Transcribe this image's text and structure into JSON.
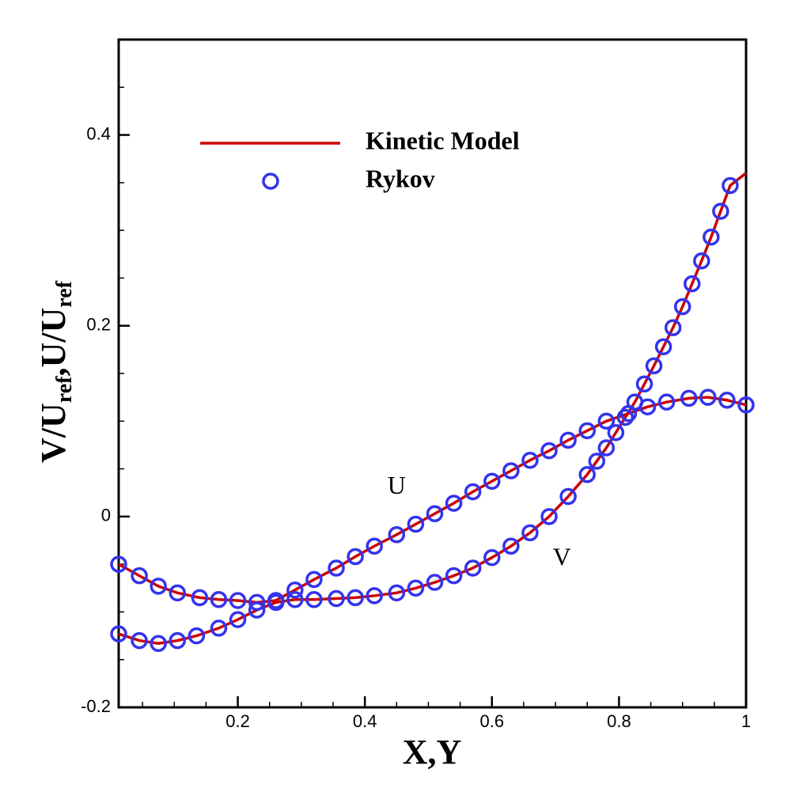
{
  "chart_data": {
    "type": "line",
    "xlabel": "X,Y",
    "ylabel_parts": [
      "V/U",
      "ref",
      ",U/U",
      "ref"
    ],
    "xlim": [
      0.0125,
      1
    ],
    "ylim": [
      -0.2,
      0.5
    ],
    "xticks": [
      0.2,
      0.4,
      0.6,
      0.8,
      1
    ],
    "yticks": [
      -0.2,
      0,
      0.2,
      0.4
    ],
    "xminor": [
      0.05,
      0.1,
      0.15,
      0.25,
      0.3,
      0.35,
      0.45,
      0.5,
      0.55,
      0.65,
      0.7,
      0.75,
      0.85,
      0.9,
      0.95
    ],
    "yminor": [
      -0.15,
      -0.1,
      -0.05,
      0.05,
      0.1,
      0.15,
      0.25,
      0.3,
      0.35,
      0.45,
      0.5
    ],
    "legend": [
      {
        "name": "Kinetic Model",
        "color": "#cc0000",
        "style": "line"
      },
      {
        "name": "Rykov",
        "color": "#3333ee",
        "style": "circle"
      }
    ],
    "series": [
      {
        "name": "U",
        "label_x": 0.45,
        "label_y": 0.03,
        "x": [
          0.0125,
          0.045,
          0.075,
          0.105,
          0.14,
          0.17,
          0.2,
          0.23,
          0.26,
          0.29,
          0.32,
          0.355,
          0.385,
          0.415,
          0.45,
          0.48,
          0.51,
          0.54,
          0.57,
          0.6,
          0.63,
          0.66,
          0.69,
          0.72,
          0.75,
          0.78,
          0.815,
          0.845,
          0.875,
          0.91,
          0.94,
          0.97,
          1.0
        ],
        "values": [
          -0.05,
          -0.062,
          -0.073,
          -0.08,
          -0.085,
          -0.087,
          -0.088,
          -0.09,
          -0.088,
          -0.077,
          -0.066,
          -0.054,
          -0.042,
          -0.031,
          -0.019,
          -0.008,
          0.003,
          0.014,
          0.026,
          0.037,
          0.048,
          0.059,
          0.069,
          0.08,
          0.09,
          0.1,
          0.108,
          0.115,
          0.12,
          0.124,
          0.125,
          0.122,
          0.117
        ]
      },
      {
        "name": "V",
        "label_x": 0.71,
        "label_y": -0.045,
        "x": [
          0.0125,
          0.045,
          0.075,
          0.105,
          0.135,
          0.17,
          0.2,
          0.23,
          0.26,
          0.29,
          0.32,
          0.355,
          0.385,
          0.415,
          0.45,
          0.48,
          0.51,
          0.54,
          0.57,
          0.6,
          0.63,
          0.66,
          0.69,
          0.72,
          0.75,
          0.765,
          0.78,
          0.795,
          0.81,
          0.825,
          0.84,
          0.855,
          0.87,
          0.885,
          0.9,
          0.915,
          0.93,
          0.945,
          0.96,
          0.975
        ],
        "values": [
          -0.123,
          -0.13,
          -0.133,
          -0.13,
          -0.125,
          -0.117,
          -0.108,
          -0.098,
          -0.09,
          -0.087,
          -0.087,
          -0.086,
          -0.085,
          -0.083,
          -0.08,
          -0.075,
          -0.069,
          -0.062,
          -0.054,
          -0.043,
          -0.031,
          -0.017,
          0.0,
          0.021,
          0.044,
          0.058,
          0.072,
          0.088,
          0.104,
          0.12,
          0.139,
          0.158,
          0.178,
          0.198,
          0.22,
          0.244,
          0.268,
          0.293,
          0.32,
          0.347
        ],
        "line_end": [
          1.0,
          0.36
        ]
      }
    ]
  }
}
